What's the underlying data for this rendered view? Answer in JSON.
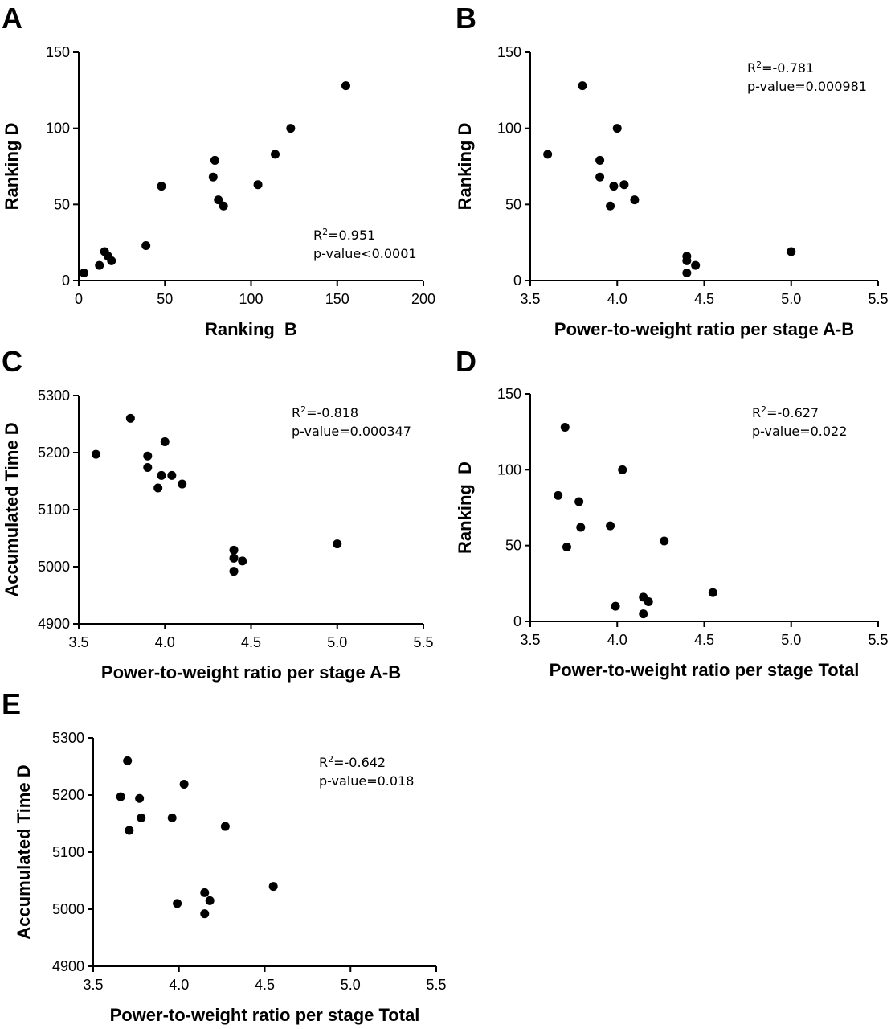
{
  "figure": {
    "background": "#ffffff",
    "point_color": "#000000"
  },
  "chart_data": [
    {
      "panel": "A",
      "type": "scatter",
      "xlabel": "Ranking  B",
      "ylabel": "Ranking D",
      "xlim": [
        0,
        200
      ],
      "ylim": [
        0,
        150
      ],
      "xticks": [
        "0",
        "50",
        "100",
        "150",
        "200"
      ],
      "yticks": [
        "0",
        "50",
        "100",
        "150"
      ],
      "annotation": {
        "r2_label": "R",
        "r2_sup": "2",
        "r2_value": "=0.951",
        "p_text": "p-value<0.0001"
      },
      "points": [
        {
          "x": 3,
          "y": 5
        },
        {
          "x": 12,
          "y": 10
        },
        {
          "x": 15,
          "y": 19
        },
        {
          "x": 17,
          "y": 16
        },
        {
          "x": 19,
          "y": 13
        },
        {
          "x": 39,
          "y": 23
        },
        {
          "x": 48,
          "y": 62
        },
        {
          "x": 78,
          "y": 68
        },
        {
          "x": 79,
          "y": 79
        },
        {
          "x": 81,
          "y": 53
        },
        {
          "x": 84,
          "y": 49
        },
        {
          "x": 104,
          "y": 63
        },
        {
          "x": 114,
          "y": 83
        },
        {
          "x": 123,
          "y": 100
        },
        {
          "x": 155,
          "y": 128
        }
      ]
    },
    {
      "panel": "B",
      "type": "scatter",
      "xlabel": "Power-to-weight ratio per stage A-B",
      "ylabel": "Ranking D",
      "xlim": [
        3.5,
        5.5
      ],
      "ylim": [
        0,
        150
      ],
      "xticks": [
        "3.5",
        "4.0",
        "4.5",
        "5.0",
        "5.5"
      ],
      "yticks": [
        "0",
        "50",
        "100",
        "150"
      ],
      "annotation": {
        "r2_label": "R",
        "r2_sup": "2",
        "r2_value": "=-0.781",
        "p_text": "p-value=0.000981"
      },
      "points": [
        {
          "x": 3.6,
          "y": 83
        },
        {
          "x": 3.8,
          "y": 128
        },
        {
          "x": 3.9,
          "y": 79
        },
        {
          "x": 3.9,
          "y": 68
        },
        {
          "x": 3.96,
          "y": 49
        },
        {
          "x": 3.98,
          "y": 62
        },
        {
          "x": 4.0,
          "y": 100
        },
        {
          "x": 4.04,
          "y": 63
        },
        {
          "x": 4.1,
          "y": 53
        },
        {
          "x": 4.4,
          "y": 16
        },
        {
          "x": 4.4,
          "y": 13
        },
        {
          "x": 4.4,
          "y": 5
        },
        {
          "x": 4.45,
          "y": 10
        },
        {
          "x": 5.0,
          "y": 19
        }
      ]
    },
    {
      "panel": "C",
      "type": "scatter",
      "xlabel": "Power-to-weight ratio per stage A-B",
      "ylabel": "Accumulated Time D",
      "xlim": [
        3.5,
        5.5
      ],
      "ylim": [
        4900,
        5300
      ],
      "xticks": [
        "3.5",
        "4.0",
        "4.5",
        "5.0",
        "5.5"
      ],
      "yticks": [
        "4900",
        "5000",
        "5100",
        "5200",
        "5300"
      ],
      "annotation": {
        "r2_label": "R",
        "r2_sup": "2",
        "r2_value": "=-0.818",
        "p_text": "p-value=0.000347"
      },
      "points": [
        {
          "x": 3.6,
          "y": 5197
        },
        {
          "x": 3.8,
          "y": 5260
        },
        {
          "x": 3.9,
          "y": 5194
        },
        {
          "x": 3.9,
          "y": 5174
        },
        {
          "x": 3.96,
          "y": 5138
        },
        {
          "x": 3.98,
          "y": 5160
        },
        {
          "x": 4.0,
          "y": 5219
        },
        {
          "x": 4.04,
          "y": 5160
        },
        {
          "x": 4.1,
          "y": 5145
        },
        {
          "x": 4.4,
          "y": 5029
        },
        {
          "x": 4.4,
          "y": 5015
        },
        {
          "x": 4.4,
          "y": 4992
        },
        {
          "x": 4.45,
          "y": 5010
        },
        {
          "x": 5.0,
          "y": 5040
        }
      ]
    },
    {
      "panel": "D",
      "type": "scatter",
      "xlabel": "Power-to-weight ratio per stage Total",
      "ylabel": "Ranking  D",
      "xlim": [
        3.5,
        5.5
      ],
      "ylim": [
        0,
        150
      ],
      "xticks": [
        "3.5",
        "4.0",
        "4.5",
        "5.0",
        "5.5"
      ],
      "yticks": [
        "0",
        "50",
        "100",
        "150"
      ],
      "annotation": {
        "r2_label": "R",
        "r2_sup": "2",
        "r2_value": "=-0.627",
        "p_text": "p-value=0.022"
      },
      "points": [
        {
          "x": 3.66,
          "y": 83
        },
        {
          "x": 3.7,
          "y": 128
        },
        {
          "x": 3.71,
          "y": 49
        },
        {
          "x": 3.78,
          "y": 79
        },
        {
          "x": 3.79,
          "y": 62
        },
        {
          "x": 3.96,
          "y": 63
        },
        {
          "x": 3.99,
          "y": 10
        },
        {
          "x": 4.03,
          "y": 100
        },
        {
          "x": 4.15,
          "y": 16
        },
        {
          "x": 4.15,
          "y": 5
        },
        {
          "x": 4.18,
          "y": 13
        },
        {
          "x": 4.27,
          "y": 53
        },
        {
          "x": 4.55,
          "y": 19
        }
      ]
    },
    {
      "panel": "E",
      "type": "scatter",
      "xlabel": "Power-to-weight ratio per stage Total",
      "ylabel": "Accumulated Time D",
      "xlim": [
        3.5,
        5.5
      ],
      "ylim": [
        4900,
        5300
      ],
      "xticks": [
        "3.5",
        "4.0",
        "4.5",
        "5.0",
        "5.5"
      ],
      "yticks": [
        "4900",
        "5000",
        "5100",
        "5200",
        "5300"
      ],
      "annotation": {
        "r2_label": "R",
        "r2_sup": "2",
        "r2_value": "=-0.642",
        "p_text": "p-value=0.018"
      },
      "points": [
        {
          "x": 3.66,
          "y": 5197
        },
        {
          "x": 3.7,
          "y": 5260
        },
        {
          "x": 3.71,
          "y": 5138
        },
        {
          "x": 3.77,
          "y": 5194
        },
        {
          "x": 3.78,
          "y": 5160
        },
        {
          "x": 3.96,
          "y": 5160
        },
        {
          "x": 3.99,
          "y": 5010
        },
        {
          "x": 4.03,
          "y": 5219
        },
        {
          "x": 4.15,
          "y": 5029
        },
        {
          "x": 4.15,
          "y": 4992
        },
        {
          "x": 4.18,
          "y": 5015
        },
        {
          "x": 4.27,
          "y": 5145
        },
        {
          "x": 4.55,
          "y": 5040
        }
      ]
    }
  ]
}
